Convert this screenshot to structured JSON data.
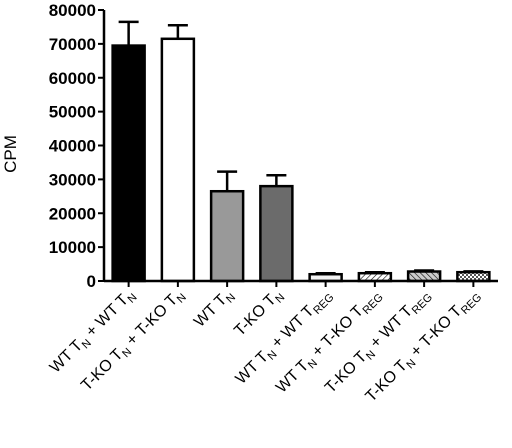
{
  "chart_data": {
    "type": "bar",
    "title": "",
    "xlabel": "",
    "ylabel": "CPM",
    "ylim": [
      0,
      80000
    ],
    "yticks": [
      0,
      10000,
      20000,
      30000,
      40000,
      50000,
      60000,
      70000,
      80000
    ],
    "grid": false,
    "categories": [
      {
        "main": "WT T",
        "sub1": "N",
        "mid": " + WT T",
        "sub2": "N"
      },
      {
        "main": "T-KO T",
        "sub1": "N",
        "mid": " + T-KO T",
        "sub2": "N"
      },
      {
        "main": "WT T",
        "sub1": "N",
        "mid": "",
        "sub2": ""
      },
      {
        "main": "T-KO T",
        "sub1": "N",
        "mid": "",
        "sub2": ""
      },
      {
        "main": "WT T",
        "sub1": "N",
        "mid": " + WT T",
        "sub2": "REG"
      },
      {
        "main": "WT T",
        "sub1": "N",
        "mid": " + T-KO T",
        "sub2": "REG"
      },
      {
        "main": "T-KO T",
        "sub1": "N",
        "mid": " + WT T",
        "sub2": "REG"
      },
      {
        "main": "T-KO T",
        "sub1": "N",
        "mid": " + T-KO T",
        "sub2": "REG"
      }
    ],
    "values": [
      69500,
      71500,
      26500,
      28000,
      2000,
      2300,
      2800,
      2600
    ],
    "errors": [
      7000,
      4000,
      5800,
      3200,
      300,
      300,
      300,
      250
    ],
    "fills": [
      "#000000",
      "#ffffff",
      "#999999",
      "#6b6b6b",
      "#f2f2f2",
      "hatch-diag",
      "hatch-rev",
      "checker"
    ]
  }
}
